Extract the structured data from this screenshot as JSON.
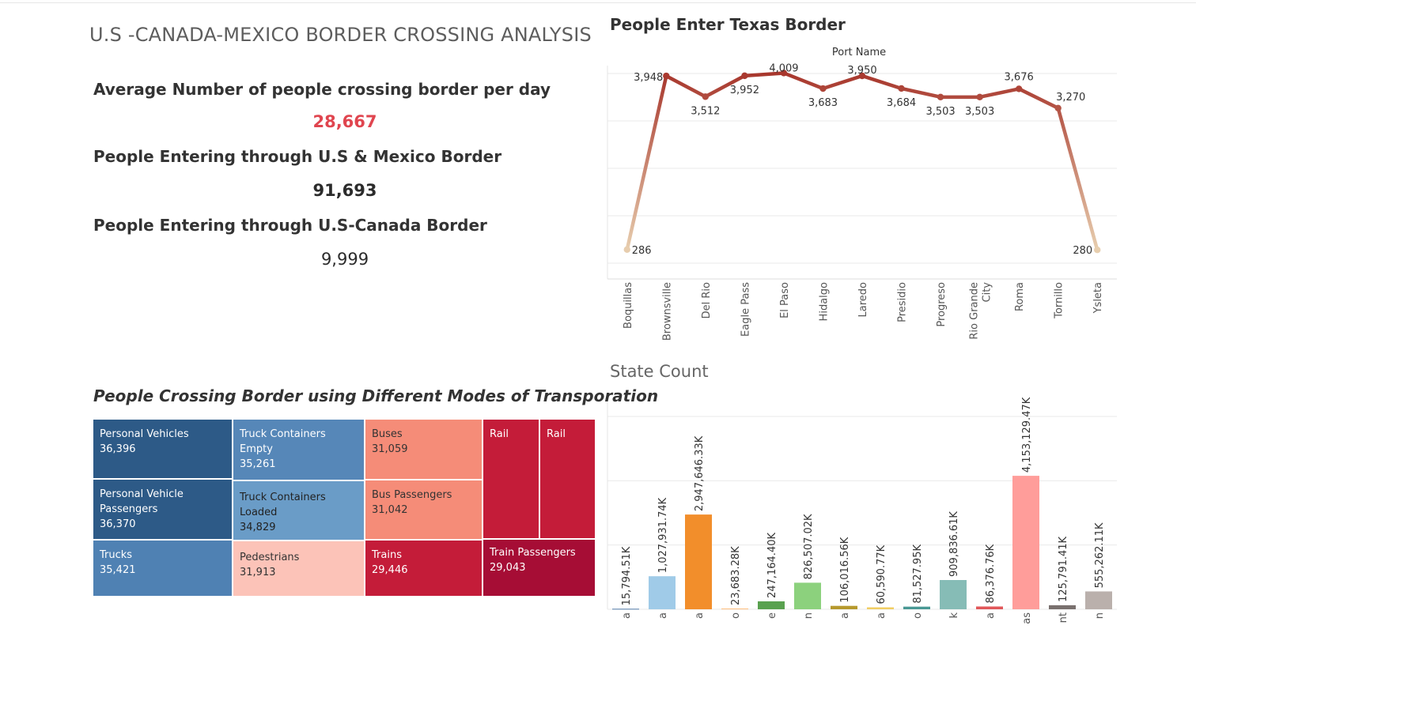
{
  "dashboard": {
    "title": "U.S -CANADA-MEXICO BORDER CROSSING ANALYSIS"
  },
  "kpis": [
    {
      "label": "Average Number of people crossing border per day",
      "value": "28,667"
    },
    {
      "label": "People Entering through U.S & Mexico Border",
      "value": "91,693"
    },
    {
      "label": "People Entering through U.S-Canada Border",
      "value": "9,999"
    }
  ],
  "colors": {
    "line_dark": "#a8372d",
    "line_light": "#ecd9b8",
    "kpi_red": "#e0454f"
  },
  "chart_data": [
    {
      "type": "line",
      "title": "People Enter Texas Border",
      "xlabel": "Port Name",
      "ylabel": "",
      "categories": [
        "Boquillas",
        "Brownsville",
        "Del Rio",
        "Eagle Pass",
        "El Paso",
        "Hidalgo",
        "Laredo",
        "Presidio",
        "Progreso",
        "Rio Grande City",
        "Roma",
        "Tornillo",
        "Ysleta"
      ],
      "category_lines": [
        [
          "Boquillas"
        ],
        [
          "Brownsville"
        ],
        [
          "Del Rio"
        ],
        [
          "Eagle Pass"
        ],
        [
          "El Paso"
        ],
        [
          "Hidalgo"
        ],
        [
          "Laredo"
        ],
        [
          "Presidio"
        ],
        [
          "Progreso"
        ],
        [
          "Rio Grande",
          "City"
        ],
        [
          "Roma"
        ],
        [
          "Tornillo"
        ],
        [
          "Ysleta"
        ]
      ],
      "values": [
        286,
        3948,
        3512,
        3952,
        4009,
        3683,
        3950,
        3684,
        3503,
        3503,
        3676,
        3270,
        280
      ],
      "labels": [
        "286",
        "3,948",
        "3,512",
        "3,952",
        "4,009",
        "3,683",
        "3,950",
        "3,684",
        "3,503",
        "3,503",
        "3,676",
        "3,270",
        "280"
      ],
      "ylim": [
        0,
        4000
      ],
      "grid": true
    },
    {
      "type": "bar",
      "title": "State Count",
      "categories": [
        "Alaska",
        "Arizona",
        "California",
        "Idaho",
        "Maine",
        "Michigan",
        "Minnesota",
        "Montana",
        "New Mexico",
        "New York",
        "North Dakota",
        "Texas",
        "Vermont",
        "Washington"
      ],
      "tick_labels": [
        "a",
        "a",
        "a",
        "o",
        "e",
        "n",
        "a",
        "a",
        "o",
        "k",
        "a",
        "as",
        "nt",
        "n"
      ],
      "values": [
        15794.51,
        1027931.74,
        2947646.33,
        23683.28,
        247164.4,
        826507.02,
        106016.56,
        60590.77,
        81527.95,
        909836.61,
        86376.76,
        4153129.47,
        125791.41,
        555262.11
      ],
      "labels": [
        "15,794.51K",
        "1,027,931.74K",
        "2,947,646.33K",
        "23,683.28K",
        "247,164.40K",
        "826,507.02K",
        "106,016.56K",
        "60,590.77K",
        "81,527.95K",
        "909,836.61K",
        "86,376.76K",
        "4,153,129.47K",
        "125,791.41K",
        "555,262.11K"
      ],
      "bar_colors": [
        "#4e79a7",
        "#a0cbe8",
        "#f28e2b",
        "#ffbe7d",
        "#59a14f",
        "#8cd17d",
        "#b6992d",
        "#f1ce63",
        "#499894",
        "#86bcb6",
        "#e15759",
        "#ff9d9a",
        "#79706e",
        "#bab0ac"
      ],
      "ylim": [
        0,
        6000000
      ],
      "grid": true
    },
    {
      "type": "treemap",
      "title": "People Crossing Border using Different Modes of Transporation",
      "items": [
        {
          "label": "Personal Vehicles",
          "value": "36,396",
          "color": "#2d5a87",
          "text_color": "#ffffff"
        },
        {
          "label": "Personal Vehicle Passengers",
          "value": "36,370",
          "color": "#2d5a87",
          "text_color": "#ffffff"
        },
        {
          "label": "Trucks",
          "value": "35,421",
          "color": "#4f81b3",
          "text_color": "#ffffff"
        },
        {
          "label": "Truck Containers Empty",
          "value": "35,261",
          "color": "#5687b8",
          "text_color": "#ffffff"
        },
        {
          "label": "Truck Containers Loaded",
          "value": "34,829",
          "color": "#6a9cc7",
          "text_color": "#222222"
        },
        {
          "label": "Pedestrians",
          "value": "31,913",
          "color": "#fcc3b8",
          "text_color": "#333333"
        },
        {
          "label": "Buses",
          "value": "31,059",
          "color": "#f58c78",
          "text_color": "#333333"
        },
        {
          "label": "Bus Passengers",
          "value": "31,042",
          "color": "#f58c78",
          "text_color": "#333333"
        },
        {
          "label": "Trains",
          "value": "29,446",
          "color": "#c41c39",
          "text_color": "#ffffff"
        },
        {
          "label": "Rail",
          "value": "",
          "color": "#c41c39",
          "text_color": "#ffffff"
        },
        {
          "label": "Rail",
          "value": "",
          "color": "#c41c39",
          "text_color": "#ffffff"
        },
        {
          "label": "Train Passengers",
          "value": "29,043",
          "color": "#a60d35",
          "text_color": "#ffffff"
        }
      ]
    }
  ]
}
